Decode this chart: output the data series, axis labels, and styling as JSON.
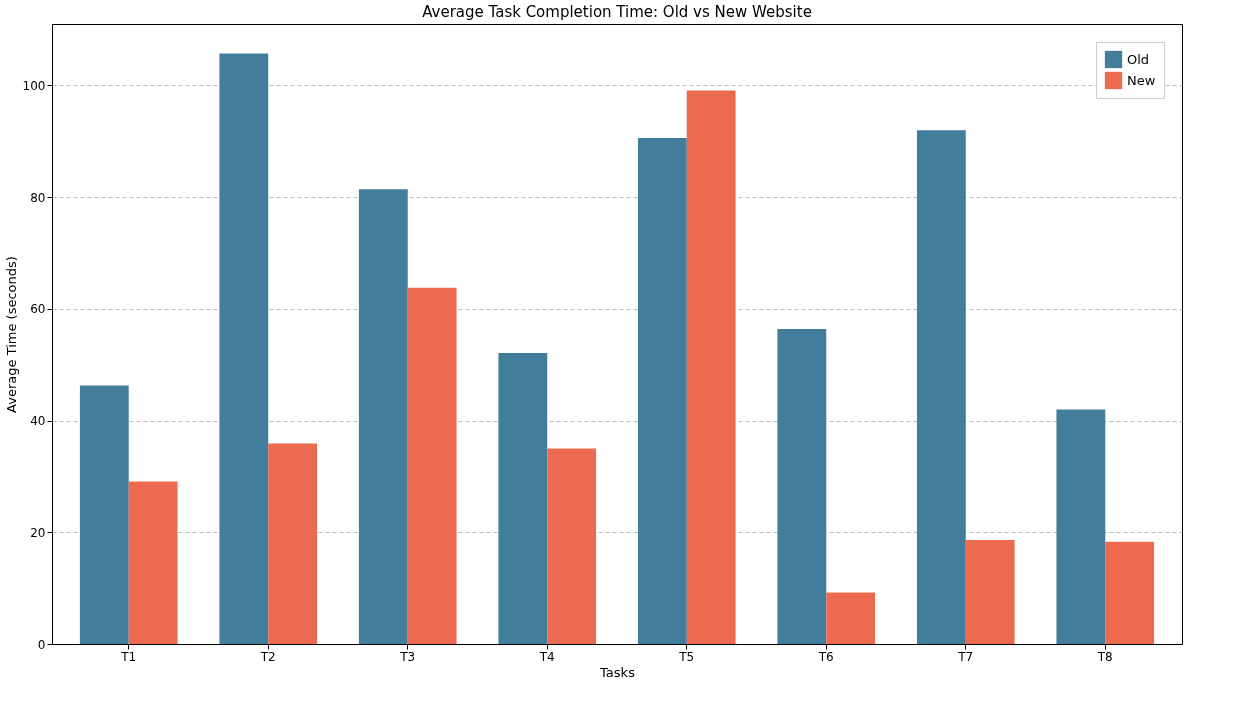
{
  "chart_data": {
    "type": "bar",
    "title": "Average Task Completion Time: Old vs New Website",
    "xlabel": "Tasks",
    "ylabel": "Average Time (seconds)",
    "categories": [
      "T1",
      "T2",
      "T3",
      "T4",
      "T5",
      "T6",
      "T7",
      "T8"
    ],
    "series": [
      {
        "name": "Old",
        "color": "#427d9b",
        "values": [
          46.3,
          105.7,
          81.4,
          52.1,
          90.6,
          56.4,
          92.0,
          42.0
        ]
      },
      {
        "name": "New",
        "color": "#eb6a50",
        "values": [
          29.1,
          35.9,
          63.8,
          35.0,
          99.1,
          9.2,
          18.6,
          18.3
        ]
      }
    ],
    "ylim": [
      0,
      111
    ],
    "yticks": [
      0,
      20,
      40,
      60,
      80,
      100
    ],
    "grid": "y",
    "legend": "top right"
  }
}
